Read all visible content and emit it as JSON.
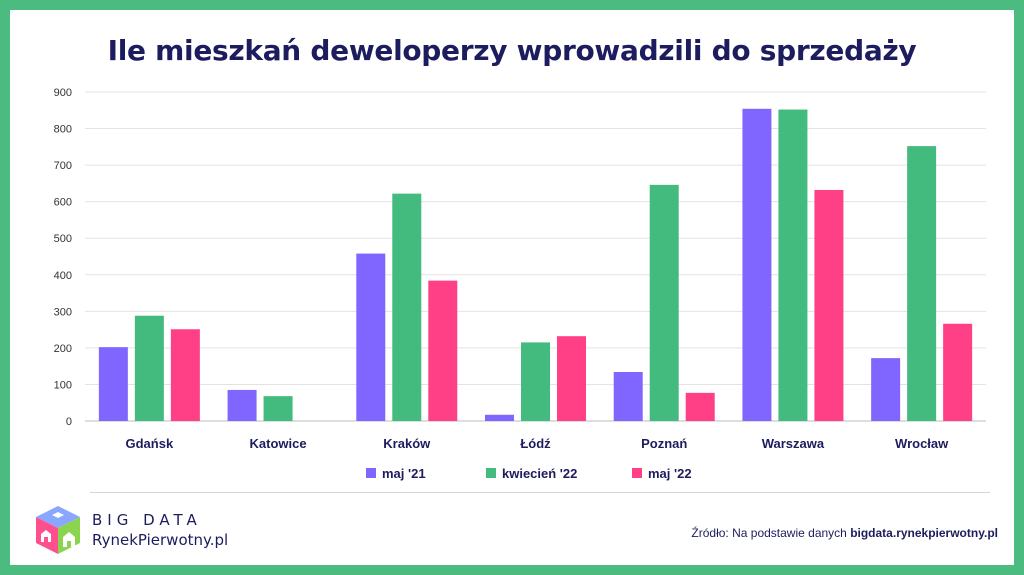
{
  "title": "Ile mieszkań deweloperzy wprowadzili do sprzedaży",
  "chart_data": {
    "type": "bar",
    "categories": [
      "Gdańsk",
      "Katowice",
      "Kraków",
      "Łódź",
      "Poznań",
      "Warszawa",
      "Wrocław"
    ],
    "series": [
      {
        "name": "maj '21",
        "color": "#8066ff",
        "values": [
          202,
          85,
          458,
          17,
          134,
          854,
          172
        ]
      },
      {
        "name": "kwiecień '22",
        "color": "#43bb7e",
        "values": [
          288,
          68,
          622,
          215,
          646,
          852,
          752
        ]
      },
      {
        "name": "maj '22",
        "color": "#ff3f86",
        "values": [
          251,
          0,
          384,
          232,
          77,
          632,
          266
        ]
      }
    ],
    "ylim": [
      0,
      900
    ],
    "yticks": [
      0,
      100,
      200,
      300,
      400,
      500,
      600,
      700,
      800,
      900
    ],
    "grid": true,
    "legend": "bottom"
  },
  "brand": {
    "line1": "BIG DATA",
    "line2": "RynekPierwotny.pl"
  },
  "source": {
    "prefix": "Źródło: Na podstawie danych ",
    "link": "bigdata.rynekpierwotny.pl"
  }
}
